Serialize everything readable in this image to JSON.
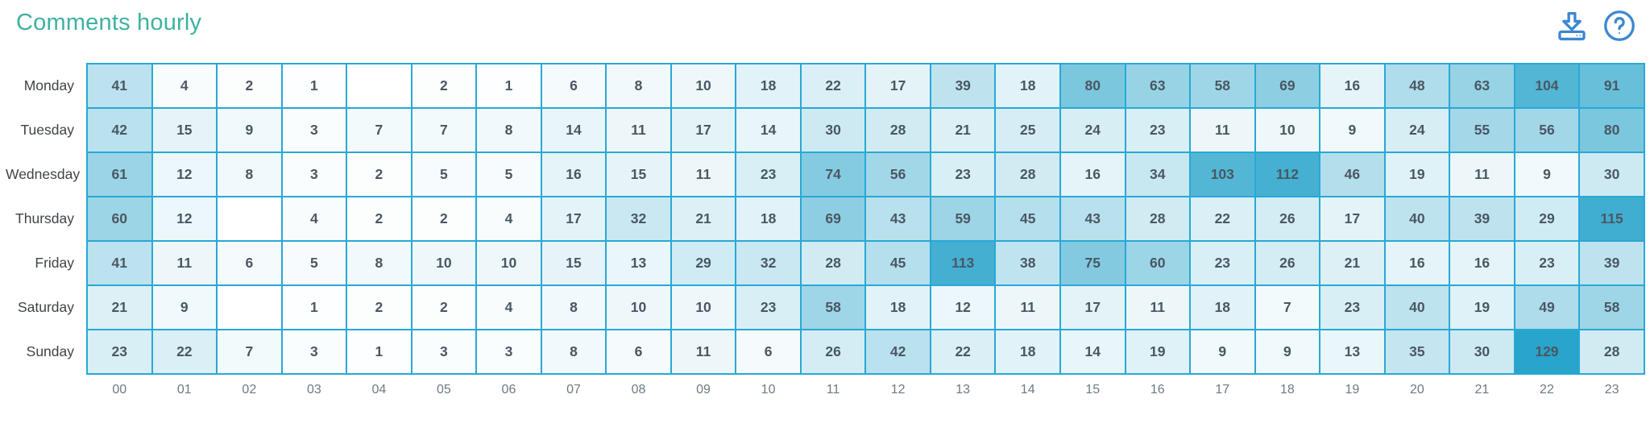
{
  "header": {
    "title": "Comments hourly",
    "download_icon": "download-to-tray",
    "help_icon": "question-mark-circle"
  },
  "colors": {
    "title_teal": "#3eb2a0",
    "icon_blue": "#3d87d1",
    "grid_border": "#29a8d6",
    "grid_bottom_border": "#a9dcec",
    "heat_min": "#ffffff",
    "heat_max": "#29a4ca",
    "cell_text": "#4a5763",
    "day_label_text": "#404446",
    "hour_label_text": "#6e7a83"
  },
  "chart_data": {
    "type": "heatmap",
    "title": "Comments hourly",
    "legend": "none",
    "grid": "on",
    "value_range": [
      0,
      129
    ],
    "color_scale": {
      "min_color": "#ffffff",
      "max_color": "#29a4ca"
    },
    "rows": [
      "Monday",
      "Tuesday",
      "Wednesday",
      "Thursday",
      "Friday",
      "Saturday",
      "Sunday"
    ],
    "columns": [
      "00",
      "01",
      "02",
      "03",
      "04",
      "05",
      "06",
      "07",
      "08",
      "09",
      "10",
      "11",
      "12",
      "13",
      "14",
      "15",
      "16",
      "17",
      "18",
      "19",
      "20",
      "21",
      "22",
      "23"
    ],
    "values": [
      [
        41,
        4,
        2,
        1,
        null,
        2,
        1,
        6,
        8,
        10,
        18,
        22,
        17,
        39,
        18,
        80,
        63,
        58,
        69,
        16,
        48,
        63,
        104,
        91
      ],
      [
        42,
        15,
        9,
        3,
        7,
        7,
        8,
        14,
        11,
        17,
        14,
        30,
        28,
        21,
        25,
        24,
        23,
        11,
        10,
        9,
        24,
        55,
        56,
        80
      ],
      [
        61,
        12,
        8,
        3,
        2,
        5,
        5,
        16,
        15,
        11,
        23,
        74,
        56,
        23,
        28,
        16,
        34,
        103,
        112,
        46,
        19,
        11,
        9,
        30
      ],
      [
        60,
        12,
        null,
        4,
        2,
        2,
        4,
        17,
        32,
        21,
        18,
        69,
        43,
        59,
        45,
        43,
        28,
        22,
        26,
        17,
        40,
        39,
        29,
        115
      ],
      [
        41,
        11,
        6,
        5,
        8,
        10,
        10,
        15,
        13,
        29,
        32,
        28,
        45,
        113,
        38,
        75,
        60,
        23,
        26,
        21,
        16,
        16,
        23,
        39
      ],
      [
        21,
        9,
        null,
        1,
        2,
        2,
        4,
        8,
        10,
        10,
        23,
        58,
        18,
        12,
        11,
        17,
        11,
        18,
        7,
        23,
        40,
        19,
        49,
        58
      ],
      [
        23,
        22,
        7,
        3,
        1,
        3,
        3,
        8,
        6,
        11,
        6,
        26,
        42,
        22,
        18,
        14,
        19,
        9,
        9,
        13,
        35,
        30,
        129,
        28
      ]
    ]
  }
}
